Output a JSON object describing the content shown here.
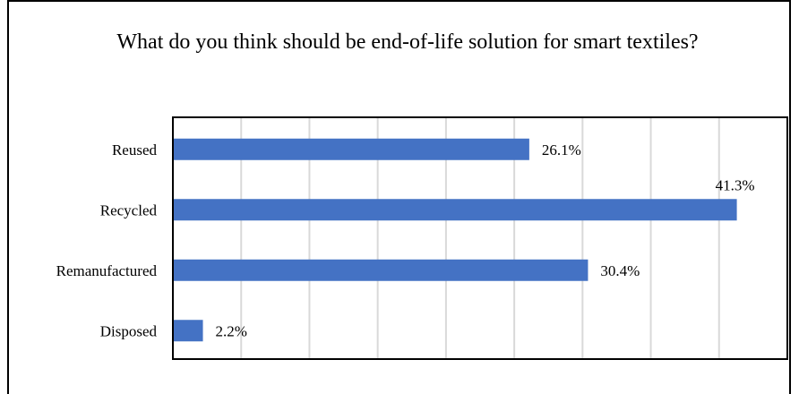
{
  "chart_data": {
    "type": "bar",
    "orientation": "horizontal",
    "title": "What do you think should be end-of-life solution for smart textiles?",
    "categories": [
      "Reused",
      "Recycled",
      "Remanufactured",
      "Disposed"
    ],
    "values": [
      26.1,
      41.3,
      30.4,
      2.2
    ],
    "value_labels": [
      "26.1%",
      "41.3%",
      "30.4%",
      "2.2%"
    ],
    "xlim": [
      0,
      45
    ],
    "x_grid_step": 5,
    "grid": true,
    "legend": "none",
    "bar_color": "#4472C4",
    "grid_color": "#D9D9D9"
  }
}
